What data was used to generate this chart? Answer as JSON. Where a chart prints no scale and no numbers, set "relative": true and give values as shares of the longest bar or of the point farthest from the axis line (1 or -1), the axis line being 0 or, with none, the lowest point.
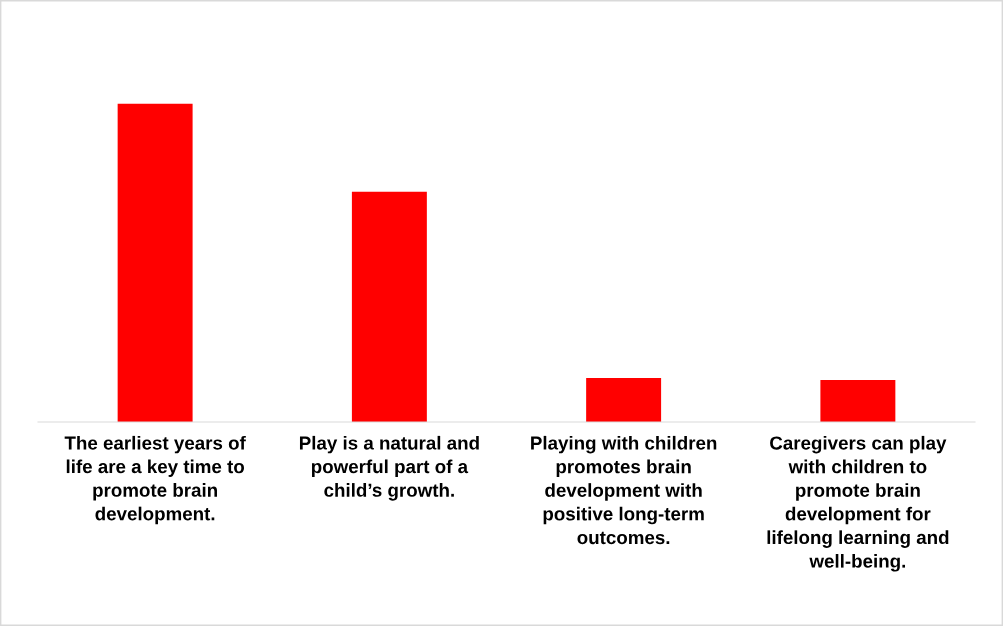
{
  "chart_data": {
    "type": "bar",
    "relative": true,
    "categories": [
      "The earliest years of\nlife are a key time to\npromote brain\ndevelopment.",
      "Play is a natural and\npowerful part of a\nchild’s growth.",
      "Playing with children\npromotes brain\ndevelopment with\npositive long-term\noutcomes.",
      "Caregivers can play\nwith children to\npromote brain\ndevelopment for\nlifelong learning and\nwell-being."
    ],
    "values": [
      1,
      0.723,
      0.138,
      0.132
    ],
    "color": "#ff0000",
    "grid": false,
    "legend": false
  }
}
